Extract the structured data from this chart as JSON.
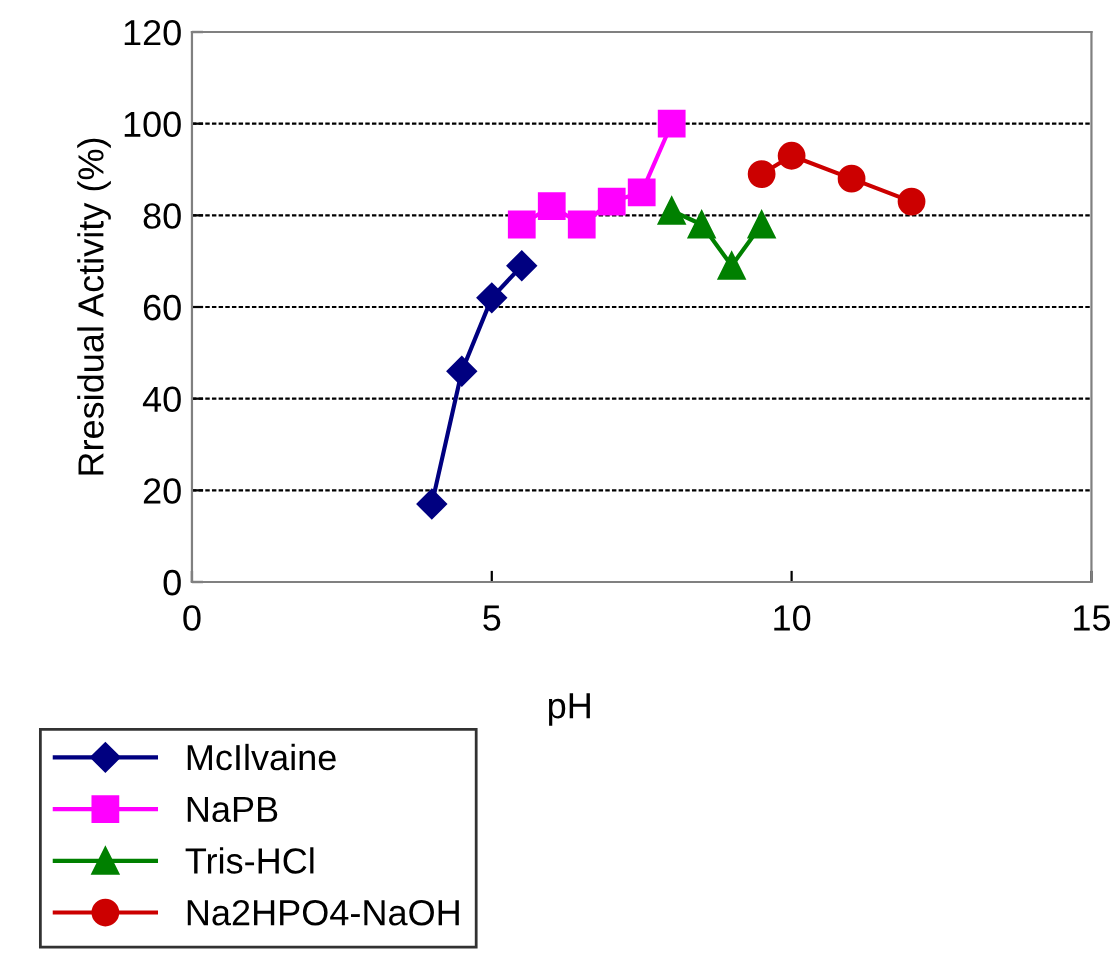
{
  "chart_data": {
    "type": "line",
    "xlabel": "pH",
    "ylabel": "Rresidual Activity (%)",
    "xlim": [
      0,
      15
    ],
    "xticks": [
      0,
      5,
      10,
      15
    ],
    "ylim": [
      0,
      120
    ],
    "yticks": [
      0,
      20,
      40,
      60,
      80,
      100,
      120
    ],
    "grid": "y",
    "legend": "bottom left",
    "line_style": "solid",
    "series": [
      {
        "name": "McIlvaine",
        "color": "#000080",
        "marker": "diamond",
        "x": [
          4,
          4.5,
          5,
          5.5
        ],
        "values": [
          17,
          46,
          62,
          69
        ]
      },
      {
        "name": "NaPB",
        "color": "#ff00ff",
        "marker": "square",
        "x": [
          5.5,
          6,
          6.5,
          7,
          7.5,
          8
        ],
        "values": [
          78,
          82,
          78,
          83,
          85,
          100
        ]
      },
      {
        "name": "Tris-HCl",
        "color": "#008000",
        "marker": "triangle",
        "x": [
          8,
          8.5,
          9,
          9.5
        ],
        "values": [
          81,
          78,
          69,
          78
        ]
      },
      {
        "name": "Na2HPO4-NaOH",
        "color": "#cc0000",
        "marker": "circle",
        "x": [
          9.5,
          10,
          11,
          12
        ],
        "values": [
          89,
          93,
          88,
          83
        ]
      }
    ]
  }
}
